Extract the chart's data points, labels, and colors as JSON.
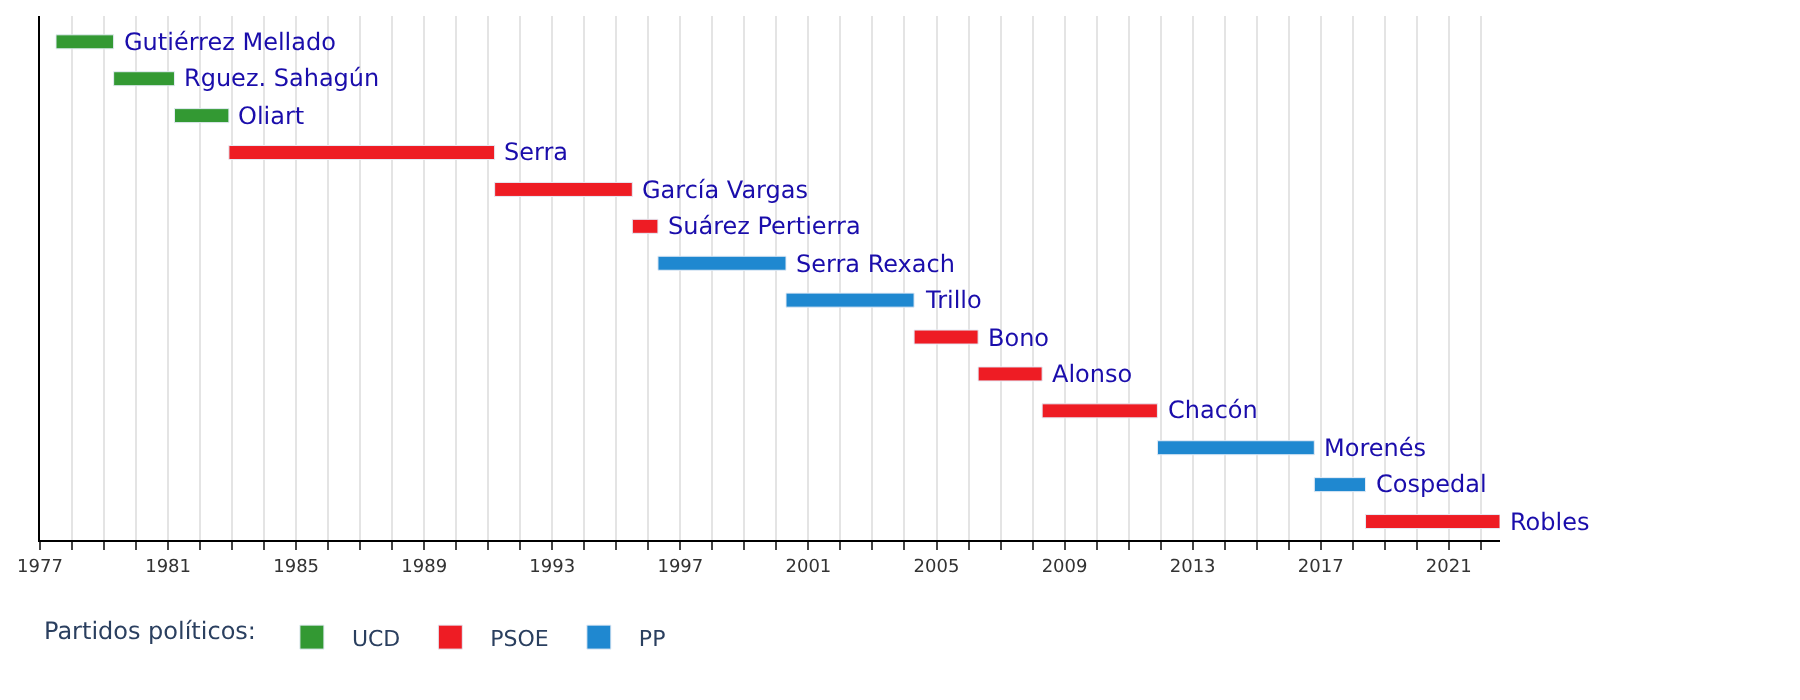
{
  "chart_data": {
    "type": "bar",
    "orientation": "horizontal",
    "legend_title": "Partidos políticos:",
    "legend": "bottom",
    "grid": "x",
    "tick_labels": "x",
    "categories": [
      "Gutiérrez Mellado",
      "Rguez. Sahagún",
      "Oliart",
      "Serra",
      "García Vargas",
      "Suárez Pertierra",
      "Serra Rexach",
      "Trillo",
      "Bono",
      "Alonso",
      "Chacón",
      "Morenés",
      "Cospedal",
      "Robles"
    ],
    "series": [
      {
        "name": "UCD",
        "color": "#339933",
        "base": [
          1977.5,
          1979.3,
          1981.2,
          null,
          null,
          null,
          null,
          null,
          null,
          null,
          null,
          null,
          null,
          null
        ],
        "values": [
          1.8,
          1.9,
          1.7,
          null,
          null,
          null,
          null,
          null,
          null,
          null,
          null,
          null,
          null,
          null
        ]
      },
      {
        "name": "PSOE",
        "color": "#ee1c24",
        "base": [
          null,
          null,
          null,
          1982.9,
          1991.2,
          1995.5,
          null,
          null,
          2004.3,
          2006.3,
          2008.3,
          null,
          null,
          2018.4
        ],
        "values": [
          null,
          null,
          null,
          8.3,
          4.3,
          0.8,
          null,
          null,
          2.0,
          2.0,
          3.6,
          null,
          null,
          4.2
        ]
      },
      {
        "name": "PP",
        "color": "#1f88d0",
        "base": [
          null,
          null,
          null,
          null,
          null,
          null,
          1996.3,
          2000.3,
          null,
          null,
          null,
          2011.9,
          2016.8,
          null
        ],
        "values": [
          null,
          null,
          null,
          null,
          null,
          null,
          4.0,
          4.0,
          null,
          null,
          null,
          4.9,
          1.6,
          null
        ]
      }
    ],
    "xlim": [
      1977,
      2022.6
    ],
    "xticks": [
      1977,
      {
        "value": 1978,
        "label": null
      },
      {
        "value": 1979,
        "label": null
      },
      {
        "value": 1980,
        "label": null
      },
      1981,
      {
        "value": 1982,
        "label": null
      },
      {
        "value": 1983,
        "label": null
      },
      {
        "value": 1984,
        "label": null
      },
      1985,
      {
        "value": 1986,
        "label": null
      },
      {
        "value": 1987,
        "label": null
      },
      {
        "value": 1988,
        "label": null
      },
      1989,
      {
        "value": 1990,
        "label": null
      },
      {
        "value": 1991,
        "label": null
      },
      {
        "value": 1992,
        "label": null
      },
      1993,
      {
        "value": 1994,
        "label": null
      },
      {
        "value": 1995,
        "label": null
      },
      {
        "value": 1996,
        "label": null
      },
      1997,
      {
        "value": 1998,
        "label": null
      },
      {
        "value": 1999,
        "label": null
      },
      {
        "value": 2000,
        "label": null
      },
      2001,
      {
        "value": 2002,
        "label": null
      },
      {
        "value": 2003,
        "label": null
      },
      {
        "value": 2004,
        "label": null
      },
      2005,
      {
        "value": 2006,
        "label": null
      },
      {
        "value": 2007,
        "label": null
      },
      {
        "value": 2008,
        "label": null
      },
      2009,
      {
        "value": 2010,
        "label": null
      },
      {
        "value": 2011,
        "label": null
      },
      {
        "value": 2012,
        "label": null
      },
      2013,
      {
        "value": 2014,
        "label": null
      },
      {
        "value": 2015,
        "label": null
      },
      {
        "value": 2016,
        "label": null
      },
      2017,
      {
        "value": 2018,
        "label": null
      },
      {
        "value": 2019,
        "label": null
      },
      {
        "value": 2020,
        "label": null
      },
      2021,
      {
        "value": 2022,
        "label": null
      }
    ]
  }
}
